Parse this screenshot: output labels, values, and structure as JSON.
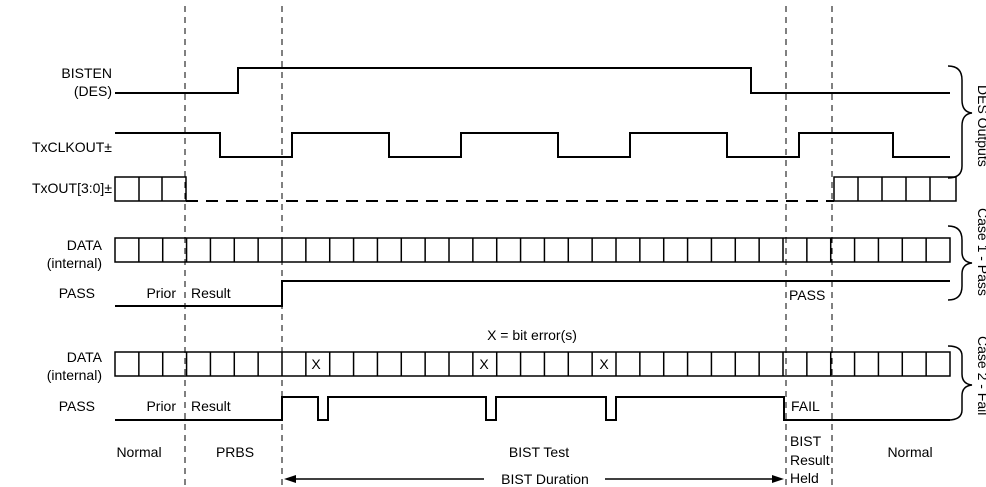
{
  "signals": {
    "bisten": [
      "BISTEN",
      "(DES)"
    ],
    "txclkout": "TxCLKOUT±",
    "txout": "TxOUT[3:0]±",
    "data1": [
      "DATA",
      "(internal)"
    ],
    "pass1": "PASS",
    "data2": [
      "DATA",
      "(internal)"
    ],
    "pass2": "PASS"
  },
  "annotations": {
    "prior": "Prior",
    "result": "Result",
    "prior2": "Prior",
    "result2": "Result",
    "pass_held": "PASS",
    "fail_held": "FAIL",
    "x_mark": "X",
    "bit_error_note": "X = bit error(s)"
  },
  "brackets": {
    "des_outputs": "DES Outputs",
    "case1": "Case 1 - Pass",
    "case2": "Case 2 - Fail"
  },
  "phases": {
    "normal_left": "Normal",
    "prbs": "PRBS",
    "bist_test": "BIST Test",
    "bist_result_held": [
      "BIST",
      "Result",
      "Held"
    ],
    "normal_right": "Normal",
    "bist_duration": "BIST Duration"
  }
}
